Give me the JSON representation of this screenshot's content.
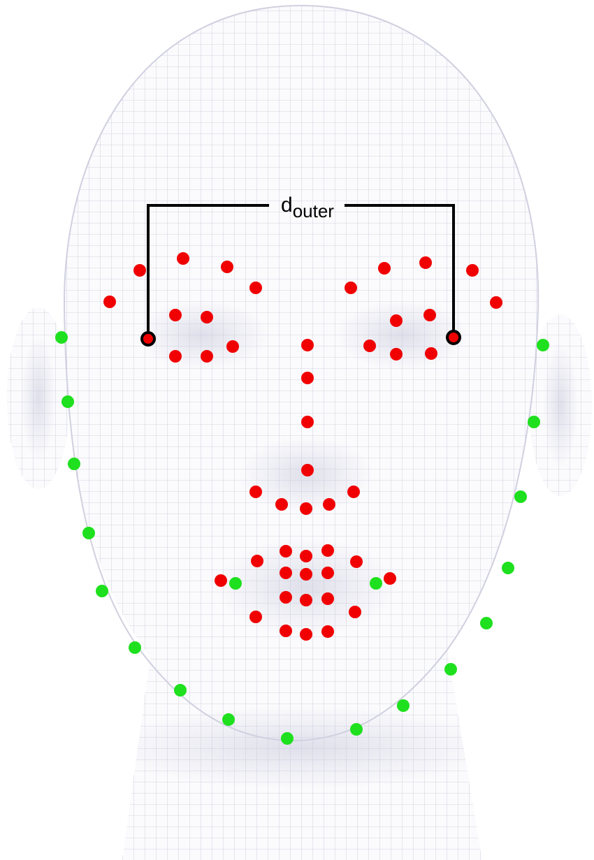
{
  "label": {
    "main": "d",
    "subscript": "outer"
  }
}
